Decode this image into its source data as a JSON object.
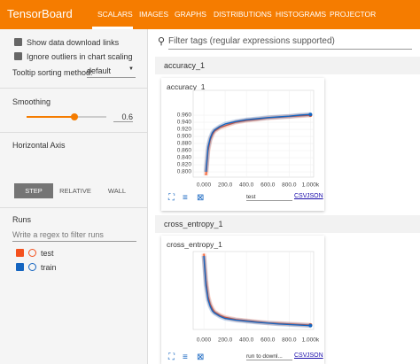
{
  "header": {
    "title": "TensorBoard",
    "tabs": [
      "SCALARS",
      "IMAGES",
      "GRAPHS",
      "DISTRIBUTIONS",
      "HISTOGRAMS",
      "PROJECTOR"
    ]
  },
  "sidebar": {
    "show_download": "Show data download links",
    "ignore_outliers": "Ignore outliers in chart scaling",
    "tooltip_label": "Tooltip sorting method:",
    "tooltip_value": "default",
    "smoothing_label": "Smoothing",
    "smoothing_value": 0.6,
    "axis_label": "Horizontal Axis",
    "axis_options": [
      "STEP",
      "RELATIVE",
      "WALL"
    ],
    "runs_label": "Runs",
    "runs_filter_placeholder": "Write a regex to filter runs",
    "runs": [
      "test",
      "train"
    ]
  },
  "filter_placeholder": "Filter tags (regular expressions supported)",
  "sections": [
    {
      "name": "accuracy_1",
      "run_select": "test",
      "csv": "CSV",
      "json": "JSON",
      "chart": {
        "type": "line",
        "title": "accuracy_1",
        "x": [
          20,
          40,
          60,
          80,
          100,
          150,
          200,
          300,
          400,
          500,
          600,
          700,
          800,
          900,
          1000
        ],
        "series": [
          {
            "name": "test",
            "color": "#f4511e",
            "values": [
              0.79,
              0.86,
              0.89,
              0.905,
              0.915,
              0.925,
              0.93,
              0.94,
              0.945,
              0.948,
              0.952,
              0.954,
              0.956,
              0.958,
              0.96
            ]
          },
          {
            "name": "train",
            "color": "#1565c0",
            "values": [
              0.8,
              0.87,
              0.895,
              0.91,
              0.918,
              0.928,
              0.935,
              0.942,
              0.947,
              0.95,
              0.953,
              0.955,
              0.957,
              0.96,
              0.962
            ]
          }
        ],
        "xlim": [
          -100,
          1030
        ],
        "xticks": [
          {
            "value": 0,
            "label": "0.000"
          },
          {
            "value": 200,
            "label": "200.0"
          },
          {
            "value": 400,
            "label": "400.0"
          },
          {
            "value": 600,
            "label": "600.0"
          },
          {
            "value": 800,
            "label": "800.0"
          },
          {
            "value": 1000,
            "label": "1.000k"
          }
        ],
        "ylim": [
          0.785,
          1.03
        ],
        "yticks": [
          {
            "value": 0.8,
            "label": "0.800"
          },
          {
            "value": 0.82,
            "label": "0.820"
          },
          {
            "value": 0.84,
            "label": "0.840"
          },
          {
            "value": 0.86,
            "label": "0.860"
          },
          {
            "value": 0.88,
            "label": "0.880"
          },
          {
            "value": 0.9,
            "label": "0.900"
          },
          {
            "value": 0.92,
            "label": "0.920"
          },
          {
            "value": 0.94,
            "label": "0.940"
          },
          {
            "value": 0.96,
            "label": "0.960"
          }
        ]
      }
    },
    {
      "name": "cross_entropy_1",
      "run_select": "run to downl...",
      "csv": "CSV",
      "json": "JSON",
      "chart": {
        "type": "line",
        "title": "cross_entropy_1",
        "x": [
          0,
          20,
          40,
          60,
          80,
          100,
          150,
          200,
          300,
          400,
          500,
          600,
          700,
          800,
          900,
          1000
        ],
        "series": [
          {
            "name": "test",
            "color": "#f4511e",
            "values": [
              0.74,
              0.5,
              0.35,
              0.28,
              0.24,
              0.21,
              0.18,
              0.16,
              0.14,
              0.13,
              0.12,
              0.11,
              0.105,
              0.1,
              0.095,
              0.09
            ]
          },
          {
            "name": "train",
            "color": "#1565c0",
            "values": [
              0.72,
              0.45,
              0.32,
              0.26,
              0.22,
              0.2,
              0.17,
              0.15,
              0.135,
              0.125,
              0.115,
              0.108,
              0.1,
              0.095,
              0.09,
              0.085
            ]
          }
        ],
        "xlim": [
          -100,
          1030
        ],
        "xticks": [
          {
            "value": 0,
            "label": "0.000"
          },
          {
            "value": 200,
            "label": "200.0"
          },
          {
            "value": 400,
            "label": "400.0"
          },
          {
            "value": 600,
            "label": "600.0"
          },
          {
            "value": 800,
            "label": "800.0"
          },
          {
            "value": 1000,
            "label": "1.000k"
          }
        ],
        "ylim": [
          0.05,
          0.76
        ]
      }
    }
  ]
}
